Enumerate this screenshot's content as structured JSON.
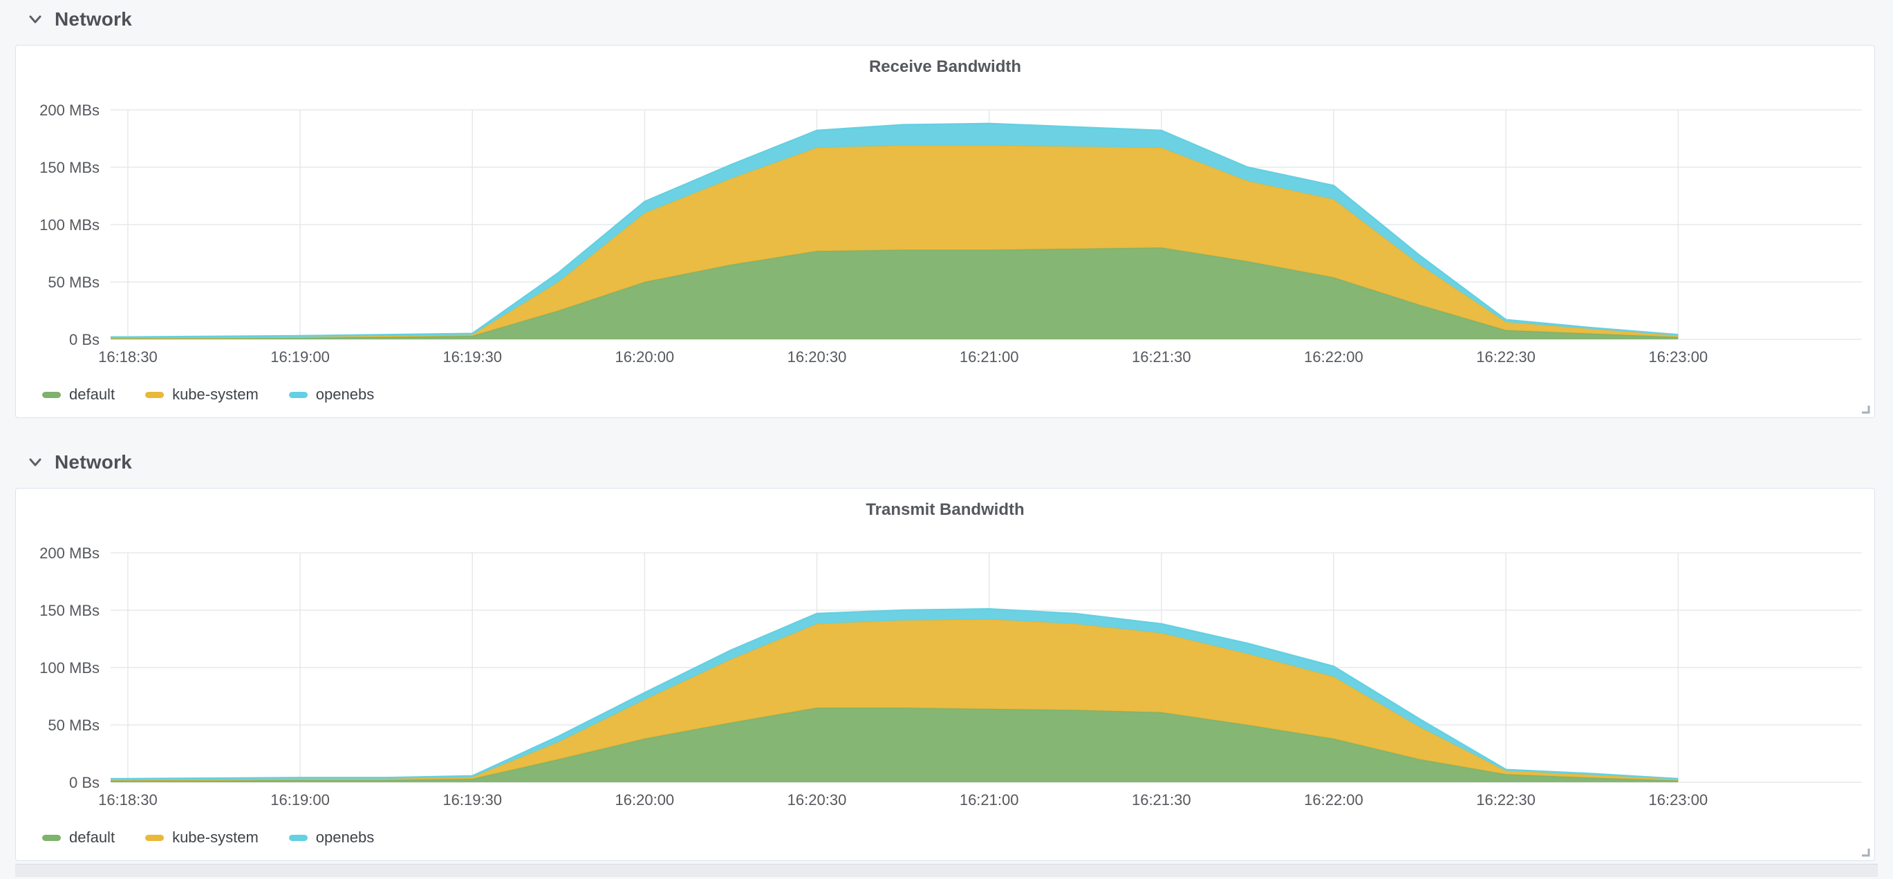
{
  "rows": [
    {
      "title": "Network"
    },
    {
      "title": "Network"
    }
  ],
  "colors": {
    "page_background": "#f6f7f9",
    "panel_background": "#ffffff",
    "panel_border": "#dbe2ee",
    "grid_line": "#e7e8ea",
    "axis_text": "#55585d",
    "title_text": "#55585e",
    "legend_text": "#3f4348",
    "series_green": "#7EB26D",
    "series_yellow": "#EAB839",
    "series_cyan": "#64D0E2"
  },
  "chart_data": [
    {
      "type": "area",
      "stacked": true,
      "grid": true,
      "legend_position": "bottom",
      "title": "Receive Bandwidth",
      "unit": "MBs",
      "ylim": [
        0,
        200
      ],
      "x_domain_s": [
        -3,
        302
      ],
      "x_tick_offsets_s": [
        0,
        30,
        60,
        90,
        120,
        150,
        180,
        210,
        240,
        270
      ],
      "x_tick_labels": [
        "16:18:30",
        "16:19:00",
        "16:19:30",
        "16:20:00",
        "16:20:30",
        "16:21:00",
        "16:21:30",
        "16:22:00",
        "16:22:30",
        "16:23:00"
      ],
      "y_ticks": [
        {
          "value": 0,
          "label": "0 Bs"
        },
        {
          "value": 50,
          "label": "50 MBs"
        },
        {
          "value": 100,
          "label": "100 MBs"
        },
        {
          "value": 150,
          "label": "150 MBs"
        },
        {
          "value": 200,
          "label": "200 MBs"
        }
      ],
      "x_offsets_s": [
        -3,
        0,
        15,
        30,
        45,
        60,
        75,
        90,
        105,
        120,
        135,
        150,
        165,
        180,
        195,
        210,
        225,
        240,
        255,
        270
      ],
      "series": [
        {
          "name": "default",
          "color": "#7EB26D",
          "values": [
            1,
            1,
            1,
            1.5,
            2,
            3,
            25,
            50,
            65,
            77,
            78,
            78,
            79,
            80,
            68,
            54,
            30,
            8,
            5,
            2
          ]
        },
        {
          "name": "kube-system",
          "color": "#EAB839",
          "values": [
            0.5,
            0.5,
            0.5,
            0.5,
            1,
            1,
            25,
            60,
            75,
            90,
            91,
            91,
            89,
            87,
            70,
            68,
            35,
            7,
            4,
            1.5
          ]
        },
        {
          "name": "openebs",
          "color": "#64D0E2",
          "values": [
            0.5,
            0.5,
            1,
            1,
            1,
            1,
            8,
            10,
            12,
            15,
            18,
            19,
            17,
            15,
            12,
            12,
            8,
            2,
            1,
            0.5
          ]
        }
      ]
    },
    {
      "type": "area",
      "stacked": true,
      "grid": true,
      "legend_position": "bottom",
      "title": "Transmit Bandwidth",
      "unit": "MBs",
      "ylim": [
        0,
        200
      ],
      "x_domain_s": [
        -3,
        302
      ],
      "x_tick_offsets_s": [
        0,
        30,
        60,
        90,
        120,
        150,
        180,
        210,
        240,
        270
      ],
      "x_tick_labels": [
        "16:18:30",
        "16:19:00",
        "16:19:30",
        "16:20:00",
        "16:20:30",
        "16:21:00",
        "16:21:30",
        "16:22:00",
        "16:22:30",
        "16:23:00"
      ],
      "y_ticks": [
        {
          "value": 0,
          "label": "0 Bs"
        },
        {
          "value": 50,
          "label": "50 MBs"
        },
        {
          "value": 100,
          "label": "100 MBs"
        },
        {
          "value": 150,
          "label": "150 MBs"
        },
        {
          "value": 200,
          "label": "200 MBs"
        }
      ],
      "x_offsets_s": [
        -3,
        0,
        15,
        30,
        45,
        60,
        75,
        90,
        105,
        120,
        135,
        150,
        165,
        180,
        195,
        210,
        225,
        240,
        255,
        270
      ],
      "series": [
        {
          "name": "default",
          "color": "#7EB26D",
          "values": [
            1.5,
            1.5,
            1.5,
            2,
            2,
            3,
            20,
            38,
            52,
            65,
            65,
            64,
            63,
            61,
            50,
            38,
            20,
            7,
            4,
            1.5
          ]
        },
        {
          "name": "kube-system",
          "color": "#EAB839",
          "values": [
            1,
            1,
            1,
            1,
            1,
            1.5,
            15,
            34,
            55,
            73,
            76,
            78,
            75,
            69,
            62,
            54,
            28,
            3,
            2.5,
            1
          ]
        },
        {
          "name": "openebs",
          "color": "#64D0E2",
          "values": [
            0.5,
            0.5,
            1,
            1,
            1,
            1,
            5,
            6,
            8,
            9,
            9,
            9,
            9,
            8,
            9,
            9,
            7,
            1,
            1,
            0.5
          ]
        }
      ]
    }
  ]
}
